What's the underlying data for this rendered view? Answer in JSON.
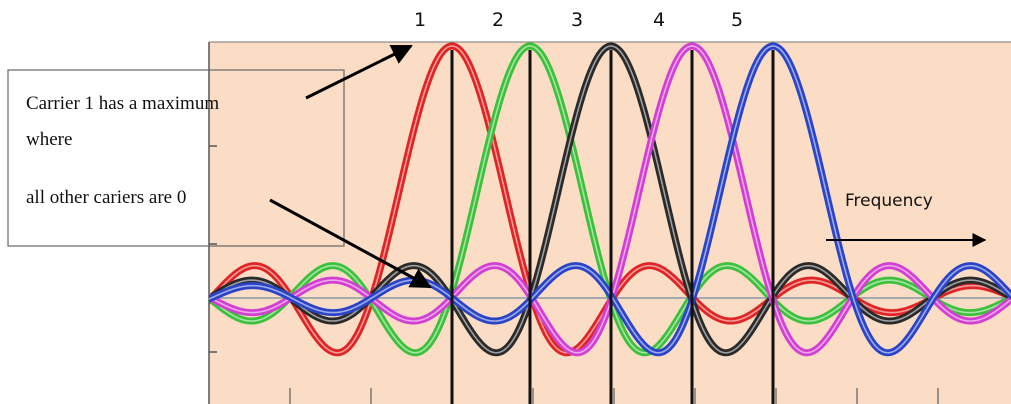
{
  "figure": {
    "carrier_numbers": [
      "1",
      "2",
      "3",
      "4",
      "5"
    ],
    "frequency_label": "Frequency",
    "callout": {
      "line1": "Carrier 1 has a maximum",
      "line2": "where",
      "line3": "all other cariers are 0"
    }
  },
  "colors": {
    "plot_background": "#fbdcc4",
    "carriers": [
      "#e02424",
      "#3cc13c",
      "#2a2a2a",
      "#d23fd2",
      "#2a44c8"
    ],
    "markers": "#111111",
    "baseline": "#8899aa"
  },
  "carriers": [
    {
      "number": "1",
      "color_name": "red"
    },
    {
      "number": "2",
      "color_name": "green"
    },
    {
      "number": "3",
      "color_name": "black"
    },
    {
      "number": "4",
      "color_name": "magenta"
    },
    {
      "number": "5",
      "color_name": "blue"
    }
  ]
}
